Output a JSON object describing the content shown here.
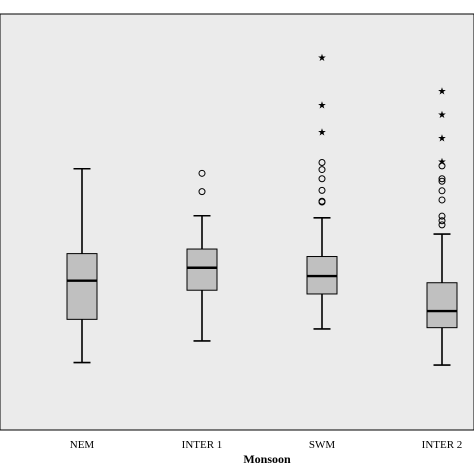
{
  "chart_data": {
    "type": "boxplot",
    "title": "",
    "xlabel": "Monsoon",
    "ylabel": "",
    "background_color": "#ebebeb",
    "box_color": "#c0c0c0",
    "ylim": [
      0,
      100
    ],
    "categories": [
      "NEM",
      "INTER 1",
      "SWM",
      "INTER 2"
    ],
    "boxes": [
      {
        "category": "NEM",
        "whisker_low": 16.2,
        "q1": 26.6,
        "median": 35.9,
        "q3": 42.4,
        "whisker_high": 62.8,
        "outliers": [],
        "extremes": []
      },
      {
        "category": "INTER 1",
        "whisker_low": 21.4,
        "q1": 33.6,
        "median": 39.0,
        "q3": 43.5,
        "whisker_high": 51.5,
        "outliers": [
          57.3,
          61.7
        ],
        "extremes": []
      },
      {
        "category": "SWM",
        "whisker_low": 24.3,
        "q1": 32.7,
        "median": 37.0,
        "q3": 41.7,
        "whisker_high": 51.0,
        "outliers": [
          54.8,
          55.0,
          57.6,
          60.4,
          62.6,
          64.3
        ],
        "extremes": [
          71.6,
          78.1,
          89.5
        ]
      },
      {
        "category": "INTER 2",
        "whisker_low": 15.6,
        "q1": 24.6,
        "median": 28.6,
        "q3": 35.4,
        "whisker_high": 47.1,
        "outliers": [
          49.3,
          50.3,
          51.4,
          55.3,
          57.5,
          59.8,
          60.4,
          63.5
        ],
        "extremes": [
          64.6,
          70.2,
          75.9,
          81.5
        ]
      }
    ]
  }
}
